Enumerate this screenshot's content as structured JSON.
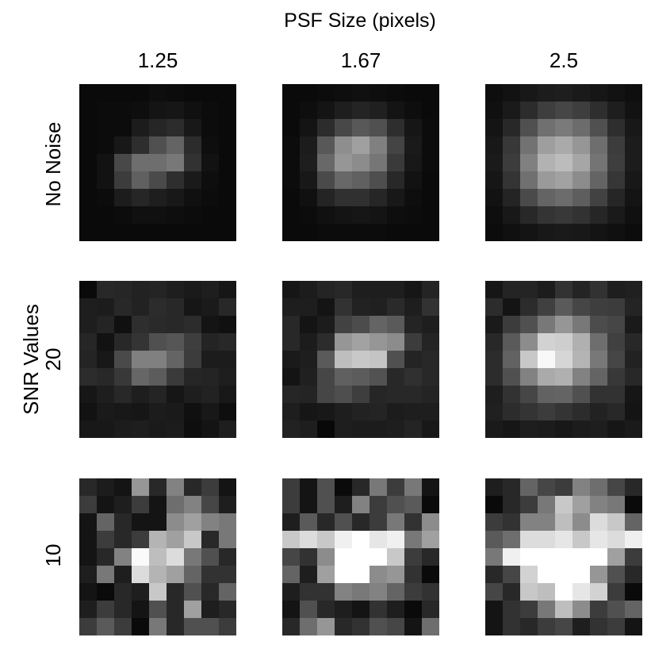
{
  "figure": {
    "title": "PSF Size (pixels)",
    "y_axis_label": "SNR Values",
    "column_labels": [
      "1.25",
      "1.67",
      "2.5"
    ],
    "row_labels": [
      "No Noise",
      "20",
      "10"
    ]
  },
  "chart_data": {
    "type": "heatmap",
    "title": "PSF Size (pixels)",
    "ylabel": "SNR Values",
    "columns": [
      "1.25",
      "1.67",
      "2.5"
    ],
    "rows": [
      "No Noise",
      "20",
      "10"
    ],
    "grid_size": [
      9,
      9
    ],
    "value_range": [
      0,
      255
    ],
    "colormap": "gray",
    "panels": [
      [
        [
          [
            10,
            10,
            10,
            10,
            14,
            12,
            10,
            10,
            10
          ],
          [
            10,
            12,
            12,
            14,
            20,
            22,
            16,
            12,
            10
          ],
          [
            10,
            12,
            12,
            28,
            38,
            44,
            24,
            12,
            10
          ],
          [
            10,
            12,
            24,
            46,
            80,
            100,
            44,
            14,
            10
          ],
          [
            10,
            18,
            72,
            110,
            110,
            120,
            50,
            18,
            10
          ],
          [
            10,
            18,
            60,
            96,
            74,
            46,
            26,
            14,
            10
          ],
          [
            10,
            12,
            28,
            38,
            30,
            24,
            16,
            12,
            10
          ],
          [
            10,
            10,
            12,
            16,
            16,
            14,
            12,
            10,
            10
          ],
          [
            10,
            10,
            10,
            10,
            10,
            10,
            10,
            10,
            10
          ]
        ],
        [
          [
            10,
            10,
            12,
            14,
            16,
            14,
            12,
            10,
            10
          ],
          [
            10,
            14,
            20,
            30,
            36,
            32,
            20,
            14,
            10
          ],
          [
            10,
            20,
            44,
            72,
            88,
            80,
            46,
            22,
            12
          ],
          [
            12,
            28,
            88,
            142,
            160,
            128,
            68,
            26,
            12
          ],
          [
            12,
            30,
            104,
            150,
            140,
            118,
            58,
            24,
            12
          ],
          [
            12,
            24,
            74,
            104,
            96,
            78,
            40,
            18,
            10
          ],
          [
            10,
            16,
            36,
            48,
            48,
            38,
            24,
            14,
            10
          ],
          [
            10,
            12,
            16,
            20,
            22,
            20,
            14,
            12,
            10
          ],
          [
            10,
            10,
            12,
            12,
            12,
            12,
            10,
            10,
            10
          ]
        ],
        [
          [
            14,
            18,
            24,
            28,
            30,
            26,
            22,
            18,
            14
          ],
          [
            16,
            26,
            44,
            62,
            70,
            62,
            46,
            30,
            18
          ],
          [
            20,
            40,
            80,
            112,
            122,
            108,
            80,
            46,
            24
          ],
          [
            24,
            56,
            114,
            158,
            170,
            150,
            110,
            60,
            28
          ],
          [
            26,
            60,
            128,
            178,
            188,
            166,
            116,
            62,
            28
          ],
          [
            22,
            52,
            112,
            154,
            162,
            140,
            100,
            54,
            24
          ],
          [
            18,
            36,
            74,
            100,
            108,
            94,
            66,
            38,
            20
          ],
          [
            14,
            24,
            40,
            52,
            56,
            50,
            38,
            26,
            16
          ],
          [
            12,
            16,
            20,
            24,
            26,
            24,
            20,
            16,
            12
          ]
        ]
      ],
      [
        [
          [
            10,
            40,
            38,
            34,
            36,
            30,
            26,
            30,
            22
          ],
          [
            30,
            28,
            40,
            34,
            44,
            40,
            22,
            26,
            40
          ],
          [
            30,
            36,
            16,
            46,
            42,
            40,
            44,
            20,
            16
          ],
          [
            38,
            18,
            40,
            52,
            80,
            86,
            62,
            36,
            40
          ],
          [
            36,
            24,
            74,
            128,
            128,
            100,
            60,
            28,
            28
          ],
          [
            44,
            40,
            56,
            102,
            92,
            58,
            38,
            36,
            30
          ],
          [
            22,
            30,
            40,
            30,
            36,
            22,
            30,
            34,
            24
          ],
          [
            18,
            26,
            24,
            22,
            28,
            26,
            16,
            24,
            14
          ],
          [
            24,
            24,
            28,
            30,
            26,
            28,
            14,
            20,
            30
          ]
        ],
        [
          [
            22,
            28,
            36,
            40,
            30,
            30,
            30,
            22,
            36
          ],
          [
            30,
            30,
            20,
            50,
            34,
            32,
            42,
            30,
            50
          ],
          [
            40,
            20,
            28,
            66,
            76,
            100,
            90,
            36,
            30
          ],
          [
            40,
            28,
            44,
            150,
            162,
            150,
            140,
            60,
            36
          ],
          [
            26,
            30,
            90,
            190,
            200,
            196,
            80,
            36,
            40
          ],
          [
            20,
            32,
            70,
            96,
            92,
            82,
            40,
            48,
            40
          ],
          [
            38,
            36,
            70,
            78,
            62,
            38,
            40,
            40,
            36
          ],
          [
            30,
            22,
            24,
            30,
            34,
            36,
            28,
            30,
            30
          ],
          [
            34,
            30,
            8,
            30,
            28,
            28,
            30,
            36,
            24
          ]
        ],
        [
          [
            22,
            36,
            36,
            28,
            50,
            36,
            50,
            30,
            32
          ],
          [
            44,
            20,
            44,
            64,
            90,
            70,
            62,
            60,
            36
          ],
          [
            26,
            60,
            80,
            120,
            150,
            120,
            76,
            70,
            26
          ],
          [
            40,
            90,
            140,
            210,
            206,
            176,
            110,
            64,
            40
          ],
          [
            44,
            98,
            200,
            248,
            214,
            180,
            120,
            70,
            34
          ],
          [
            44,
            80,
            130,
            170,
            176,
            130,
            100,
            56,
            40
          ],
          [
            30,
            50,
            70,
            98,
            100,
            80,
            50,
            50,
            22
          ],
          [
            32,
            44,
            52,
            60,
            52,
            44,
            34,
            40,
            20
          ],
          [
            26,
            22,
            30,
            28,
            24,
            28,
            30,
            22,
            26
          ]
        ]
      ],
      [
        [
          [
            40,
            28,
            20,
            150,
            40,
            130,
            40,
            60,
            20
          ],
          [
            60,
            20,
            30,
            60,
            20,
            110,
            130,
            70,
            30
          ],
          [
            20,
            100,
            40,
            20,
            20,
            140,
            160,
            130,
            120
          ],
          [
            20,
            60,
            40,
            60,
            180,
            160,
            200,
            40,
            120
          ],
          [
            20,
            40,
            130,
            250,
            190,
            220,
            120,
            80,
            40
          ],
          [
            30,
            120,
            30,
            220,
            180,
            160,
            100,
            50,
            50
          ],
          [
            20,
            10,
            40,
            30,
            200,
            40,
            80,
            40,
            100
          ],
          [
            30,
            60,
            40,
            20,
            80,
            40,
            160,
            30,
            40
          ],
          [
            60,
            90,
            60,
            10,
            120,
            40,
            80,
            80,
            60
          ]
        ],
        [
          [
            60,
            20,
            80,
            10,
            40,
            120,
            60,
            120,
            20
          ],
          [
            60,
            20,
            80,
            30,
            130,
            60,
            80,
            90,
            10
          ],
          [
            30,
            90,
            40,
            80,
            40,
            60,
            120,
            50,
            140
          ],
          [
            200,
            220,
            200,
            240,
            255,
            230,
            240,
            120,
            160
          ],
          [
            70,
            50,
            140,
            255,
            255,
            255,
            200,
            60,
            40
          ],
          [
            100,
            30,
            160,
            255,
            255,
            140,
            150,
            50,
            10
          ],
          [
            30,
            50,
            50,
            130,
            120,
            130,
            100,
            60,
            50
          ],
          [
            20,
            80,
            40,
            30,
            20,
            50,
            30,
            10,
            40
          ],
          [
            40,
            110,
            150,
            40,
            50,
            80,
            70,
            20,
            110
          ]
        ],
        [
          [
            30,
            40,
            100,
            70,
            60,
            130,
            110,
            70,
            40
          ],
          [
            10,
            40,
            60,
            120,
            200,
            160,
            130,
            120,
            10
          ],
          [
            60,
            50,
            130,
            130,
            190,
            140,
            220,
            200,
            100
          ],
          [
            90,
            110,
            220,
            220,
            230,
            200,
            230,
            220,
            240
          ],
          [
            120,
            240,
            255,
            255,
            255,
            255,
            255,
            160,
            60
          ],
          [
            40,
            70,
            210,
            255,
            255,
            255,
            150,
            80,
            40
          ],
          [
            70,
            40,
            200,
            190,
            255,
            230,
            210,
            60,
            10
          ],
          [
            20,
            50,
            60,
            120,
            190,
            140,
            60,
            80,
            100
          ],
          [
            20,
            50,
            40,
            60,
            70,
            30,
            50,
            60,
            20
          ]
        ]
      ]
    ]
  }
}
